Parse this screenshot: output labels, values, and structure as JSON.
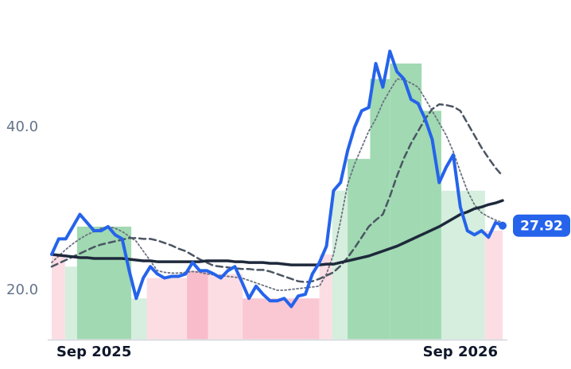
{
  "chart_data": {
    "type": "line",
    "categories": [
      null,
      null,
      null,
      null,
      null,
      null,
      "Sep 2025",
      null,
      null,
      null,
      null,
      null,
      null,
      null,
      null,
      null,
      null,
      null,
      null,
      null,
      null,
      null,
      null,
      null,
      null,
      null,
      null,
      null,
      null,
      null,
      null,
      null,
      null,
      null,
      null,
      null,
      null,
      null,
      null,
      null,
      null,
      null,
      null,
      null,
      null,
      null,
      null,
      null,
      null,
      null,
      null,
      null,
      null,
      null,
      null,
      null,
      null,
      null,
      "Sep 2026",
      null,
      null,
      null,
      null,
      null,
      null
    ],
    "ylim": [
      14,
      55
    ],
    "yticks": [
      {
        "value": 20,
        "label": "20.0"
      },
      {
        "value": 40,
        "label": "40.0"
      }
    ],
    "series": [
      {
        "color": "#2563eb",
        "style": "solid",
        "width": 4,
        "values": [
          24.4,
          26.3,
          26.3,
          27.8,
          29.3,
          28.3,
          27.3,
          27.3,
          27.8,
          26.8,
          26.3,
          22.4,
          19.0,
          21.5,
          22.9,
          22.0,
          21.5,
          21.7,
          21.7,
          22.0,
          23.4,
          22.4,
          22.4,
          22.0,
          21.5,
          22.4,
          22.9,
          21.0,
          19.0,
          20.5,
          19.5,
          18.7,
          18.7,
          19.0,
          18.0,
          19.3,
          19.5,
          22.0,
          23.4,
          25.4,
          32.2,
          33.2,
          37.1,
          40.0,
          42.0,
          42.4,
          47.8,
          44.9,
          49.3,
          46.8,
          45.9,
          43.4,
          42.9,
          41.0,
          38.5,
          33.2,
          35.1,
          36.6,
          30.2,
          27.3,
          26.8,
          27.3,
          26.5,
          28.3,
          27.92
        ]
      },
      {
        "color": "#1e293b",
        "style": "solid",
        "width": 3.5,
        "values": [
          24.4,
          24.3,
          24.2,
          24.1,
          24.0,
          24.0,
          23.9,
          23.9,
          23.9,
          23.9,
          23.9,
          23.8,
          23.7,
          23.6,
          23.6,
          23.5,
          23.5,
          23.5,
          23.5,
          23.5,
          23.5,
          23.5,
          23.6,
          23.6,
          23.6,
          23.6,
          23.5,
          23.5,
          23.4,
          23.4,
          23.4,
          23.3,
          23.3,
          23.2,
          23.1,
          23.1,
          23.1,
          23.1,
          23.1,
          23.2,
          23.2,
          23.4,
          23.6,
          23.8,
          24.0,
          24.2,
          24.5,
          24.8,
          25.1,
          25.4,
          25.8,
          26.2,
          26.6,
          27.0,
          27.4,
          27.8,
          28.3,
          28.8,
          29.3,
          29.6,
          30.0,
          30.2,
          30.5,
          30.7,
          31.0
        ]
      },
      {
        "color": "#4b5563",
        "style": "dashed",
        "width": 2.5,
        "values": [
          22.9,
          23.3,
          23.7,
          24.1,
          24.5,
          24.9,
          25.3,
          25.6,
          25.8,
          26.0,
          26.2,
          26.4,
          26.4,
          26.3,
          26.3,
          26.1,
          25.8,
          25.5,
          25.1,
          24.8,
          24.3,
          23.8,
          23.4,
          23.0,
          22.9,
          22.8,
          22.7,
          22.6,
          22.6,
          22.5,
          22.5,
          22.3,
          22.0,
          21.7,
          21.4,
          21.1,
          21.0,
          21.1,
          21.4,
          21.8,
          22.2,
          23.0,
          24.0,
          25.2,
          26.5,
          27.8,
          28.6,
          29.3,
          31.5,
          34.0,
          36.2,
          38.0,
          39.5,
          41.0,
          42.2,
          42.8,
          42.7,
          42.5,
          42.0,
          40.5,
          39.0,
          37.5,
          36.2,
          35.0,
          34.0
        ]
      },
      {
        "color": "#6b7280",
        "style": "dotted",
        "width": 1.8,
        "values": [
          23.4,
          24.2,
          25.0,
          25.7,
          26.3,
          26.8,
          27.2,
          27.6,
          27.8,
          27.6,
          27.2,
          26.6,
          26.0,
          24.8,
          23.6,
          22.4,
          22.2,
          22.1,
          22.1,
          22.2,
          22.3,
          22.2,
          22.0,
          21.9,
          21.8,
          21.7,
          21.6,
          21.5,
          21.2,
          20.9,
          20.6,
          20.3,
          20.0,
          20.0,
          20.1,
          20.2,
          20.3,
          20.4,
          20.5,
          22.0,
          24.4,
          28.5,
          33.0,
          35.5,
          37.5,
          39.5,
          41.0,
          43.0,
          44.5,
          45.9,
          45.8,
          45.4,
          44.9,
          43.5,
          42.0,
          40.5,
          39.0,
          37.0,
          34.5,
          32.2,
          30.5,
          29.5,
          29.0,
          28.6,
          28.3
        ]
      }
    ],
    "bands": [
      {
        "start": 0,
        "end": 1.9,
        "top": 24.4,
        "color": "#fcdde3"
      },
      {
        "start": 1.9,
        "end": 3.6,
        "top": 22.9,
        "color": "#d5eedd"
      },
      {
        "start": 3.6,
        "end": 11.3,
        "top": 27.8,
        "color": "#a0d9b2"
      },
      {
        "start": 11.3,
        "end": 13.5,
        "top": 19.0,
        "color": "#d5eedd"
      },
      {
        "start": 13.5,
        "end": 19.2,
        "top": 21.5,
        "color": "#fcdde3"
      },
      {
        "start": 19.2,
        "end": 22.2,
        "top": 22.4,
        "color": "#f8bccb"
      },
      {
        "start": 22.2,
        "end": 27.1,
        "top": 22.0,
        "color": "#fcdde3"
      },
      {
        "start": 27.1,
        "end": 38.0,
        "top": 19.0,
        "color": "#f9c8d3"
      },
      {
        "start": 38.0,
        "end": 39.8,
        "top": 24.4,
        "color": "#fcdde3"
      },
      {
        "start": 39.8,
        "end": 42.0,
        "top": 32.2,
        "color": "#d5eedd"
      },
      {
        "start": 42.0,
        "end": 45.2,
        "top": 36.1,
        "color": "#a0d9b2"
      },
      {
        "start": 45.2,
        "end": 48.0,
        "top": 45.9,
        "color": "#a0d9b2"
      },
      {
        "start": 48.0,
        "end": 52.5,
        "top": 47.8,
        "color": "#a0d9b2"
      },
      {
        "start": 52.5,
        "end": 55.3,
        "top": 42.0,
        "color": "#a0d9b2"
      },
      {
        "start": 55.3,
        "end": 61.5,
        "top": 32.2,
        "color": "#d5eedd"
      },
      {
        "start": 61.5,
        "end": 64,
        "top": 27.3,
        "color": "#fcdde3"
      }
    ]
  }
}
